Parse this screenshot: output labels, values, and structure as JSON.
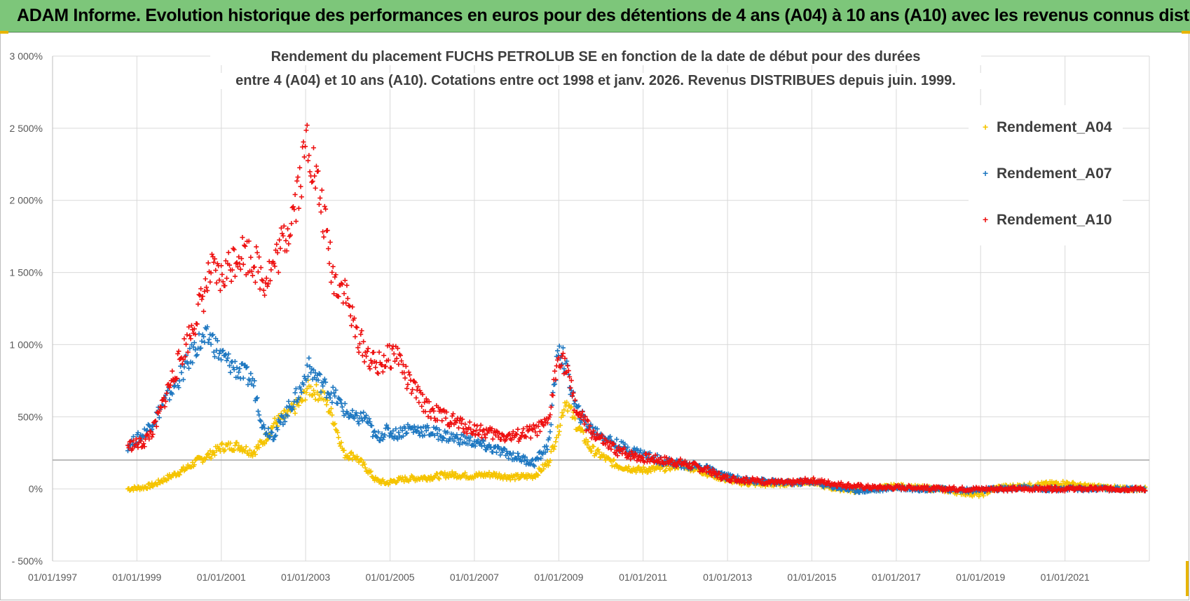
{
  "banner": {
    "title": "ADAM Informe. Evolution historique des performances en euros pour des détentions de 4 ans (A04) à 10 ans (A10) avec les revenus connus distribués"
  },
  "chart_data": {
    "type": "scatter",
    "title_line1": "Rendement du placement FUCHS PETROLUB SE en fonction de la date de début pour des durées",
    "title_line2": "entre 4 (A04) et 10 ans (A10). Cotations entre oct 1998 et janv. 2026. Revenus DISTRIBUES depuis juin. 1999.",
    "xlabel": "",
    "ylabel": "",
    "ylim": [
      -500,
      3000
    ],
    "xlim": [
      "1997-01-01",
      "2023-01-01"
    ],
    "y_tick_labels": [
      "- 500%",
      "0%",
      "500%",
      "1 000%",
      "1 500%",
      "2 000%",
      "2 500%",
      "3 000%"
    ],
    "x_tick_labels": [
      "01/01/1997",
      "01/01/1999",
      "01/01/2001",
      "01/01/2003",
      "01/01/2005",
      "01/01/2007",
      "01/01/2009",
      "01/01/2011",
      "01/01/2013",
      "01/01/2015",
      "01/01/2017",
      "01/01/2019",
      "01/01/2021"
    ],
    "reference_line": 200,
    "grid": true,
    "legend_position": "right",
    "marker": "+",
    "series": [
      {
        "name": "Rendement_A04",
        "color": "#f5c400",
        "x": [
          "1998-10-15",
          "1999-03-01",
          "1999-06-01",
          "1999-10-01",
          "2000-03-01",
          "2000-06-01",
          "2000-10-01",
          "2001-01-01",
          "2001-06-01",
          "2001-10-01",
          "2002-01-01",
          "2002-04-01",
          "2002-08-01",
          "2002-12-01",
          "2003-01-15",
          "2003-06-01",
          "2003-09-01",
          "2003-12-01",
          "2004-03-01",
          "2004-06-01",
          "2004-09-01",
          "2004-12-01",
          "2005-03-01",
          "2005-06-01",
          "2005-12-01",
          "2006-06-01",
          "2006-12-01",
          "2007-06-01",
          "2007-12-01",
          "2008-06-01",
          "2008-10-01",
          "2009-01-01",
          "2009-03-01",
          "2009-06-01",
          "2009-10-01",
          "2010-03-01",
          "2010-06-01",
          "2010-12-01",
          "2011-06-01",
          "2011-12-01",
          "2012-06-01",
          "2012-12-01",
          "2013-06-01",
          "2014-01-01",
          "2014-06-01",
          "2015-01-01",
          "2015-06-01",
          "2016-01-01",
          "2016-06-01",
          "2017-01-01",
          "2017-06-01",
          "2018-01-01",
          "2018-06-01",
          "2019-01-01",
          "2019-06-01",
          "2020-01-01",
          "2020-06-01",
          "2021-01-01",
          "2021-06-01",
          "2022-01-01",
          "2022-06-01",
          "2022-12-01"
        ],
        "y": [
          0,
          10,
          30,
          80,
          140,
          190,
          240,
          290,
          300,
          250,
          330,
          450,
          520,
          610,
          700,
          650,
          480,
          240,
          230,
          150,
          60,
          40,
          60,
          70,
          80,
          100,
          90,
          100,
          80,
          90,
          180,
          420,
          620,
          450,
          280,
          200,
          160,
          130,
          140,
          170,
          120,
          70,
          40,
          30,
          40,
          50,
          10,
          -10,
          0,
          20,
          10,
          0,
          -20,
          -40,
          10,
          20,
          30,
          40,
          20,
          10,
          0,
          0
        ]
      },
      {
        "name": "Rendement_A07",
        "color": "#1f78c1",
        "x": [
          "1998-10-15",
          "1999-03-01",
          "1999-06-01",
          "1999-10-01",
          "2000-03-01",
          "2000-06-01",
          "2000-10-01",
          "2001-01-01",
          "2001-06-01",
          "2001-10-01",
          "2002-01-01",
          "2002-04-01",
          "2002-08-01",
          "2002-12-01",
          "2003-01-15",
          "2003-06-01",
          "2003-09-01",
          "2003-12-01",
          "2004-03-01",
          "2004-06-01",
          "2004-09-01",
          "2004-12-01",
          "2005-03-01",
          "2005-06-01",
          "2005-12-01",
          "2006-06-01",
          "2006-12-01",
          "2007-06-01",
          "2007-12-01",
          "2008-06-01",
          "2008-10-01",
          "2009-01-01",
          "2009-03-01",
          "2009-06-01",
          "2009-10-01",
          "2010-03-01",
          "2010-06-01",
          "2010-12-01",
          "2011-06-01",
          "2011-12-01",
          "2012-06-01",
          "2012-12-01",
          "2013-06-01",
          "2014-01-01",
          "2014-06-01",
          "2015-01-01",
          "2015-06-01",
          "2016-01-01",
          "2016-06-01",
          "2017-01-01",
          "2017-06-01",
          "2018-01-01",
          "2018-06-01",
          "2019-01-01",
          "2019-06-01",
          "2020-01-01",
          "2020-06-01",
          "2021-01-01",
          "2021-06-01",
          "2022-01-01",
          "2022-06-01",
          "2022-12-01"
        ],
        "y": [
          300,
          380,
          480,
          650,
          850,
          1000,
          1050,
          920,
          820,
          750,
          420,
          380,
          550,
          700,
          850,
          720,
          650,
          550,
          480,
          500,
          350,
          400,
          380,
          420,
          400,
          360,
          330,
          280,
          230,
          180,
          300,
          1000,
          850,
          550,
          420,
          350,
          300,
          250,
          200,
          170,
          150,
          90,
          60,
          50,
          40,
          50,
          20,
          -10,
          -10,
          10,
          0,
          0,
          -10,
          -10,
          0,
          10,
          0,
          0,
          0,
          0,
          0,
          0
        ]
      },
      {
        "name": "Rendement_A10",
        "color": "#ee1111",
        "x": [
          "1998-10-15",
          "1999-03-01",
          "1999-06-01",
          "1999-10-01",
          "2000-03-01",
          "2000-06-01",
          "2000-10-01",
          "2001-01-01",
          "2001-06-01",
          "2001-10-01",
          "2002-01-01",
          "2002-04-01",
          "2002-08-01",
          "2002-12-01",
          "2003-01-15",
          "2003-06-01",
          "2003-09-01",
          "2003-12-01",
          "2004-03-01",
          "2004-06-01",
          "2004-09-01",
          "2004-12-01",
          "2005-03-01",
          "2005-06-01",
          "2005-12-01",
          "2006-06-01",
          "2006-12-01",
          "2007-06-01",
          "2007-12-01",
          "2008-06-01",
          "2008-10-01",
          "2009-01-01",
          "2009-03-01",
          "2009-06-01",
          "2009-10-01",
          "2010-03-01",
          "2010-06-01",
          "2010-12-01",
          "2011-06-01",
          "2011-12-01",
          "2012-06-01",
          "2012-12-01",
          "2013-06-01",
          "2014-01-01",
          "2014-06-01",
          "2015-01-01",
          "2015-06-01",
          "2016-01-01",
          "2016-06-01",
          "2017-01-01",
          "2017-06-01",
          "2018-01-01",
          "2018-06-01",
          "2019-01-01",
          "2019-06-01",
          "2020-01-01",
          "2020-06-01",
          "2021-01-01",
          "2021-06-01",
          "2022-01-01",
          "2022-06-01",
          "2022-12-01"
        ],
        "y": [
          300,
          320,
          420,
          700,
          1000,
          1200,
          1500,
          1450,
          1650,
          1600,
          1450,
          1550,
          1800,
          2200,
          2450,
          1900,
          1450,
          1400,
          1100,
          950,
          850,
          900,
          950,
          750,
          550,
          480,
          420,
          380,
          360,
          400,
          450,
          950,
          850,
          550,
          400,
          300,
          260,
          220,
          200,
          180,
          140,
          80,
          60,
          50,
          40,
          60,
          40,
          20,
          10,
          10,
          10,
          0,
          0,
          0,
          0,
          0,
          0,
          0,
          0,
          0,
          0,
          0
        ]
      }
    ]
  }
}
